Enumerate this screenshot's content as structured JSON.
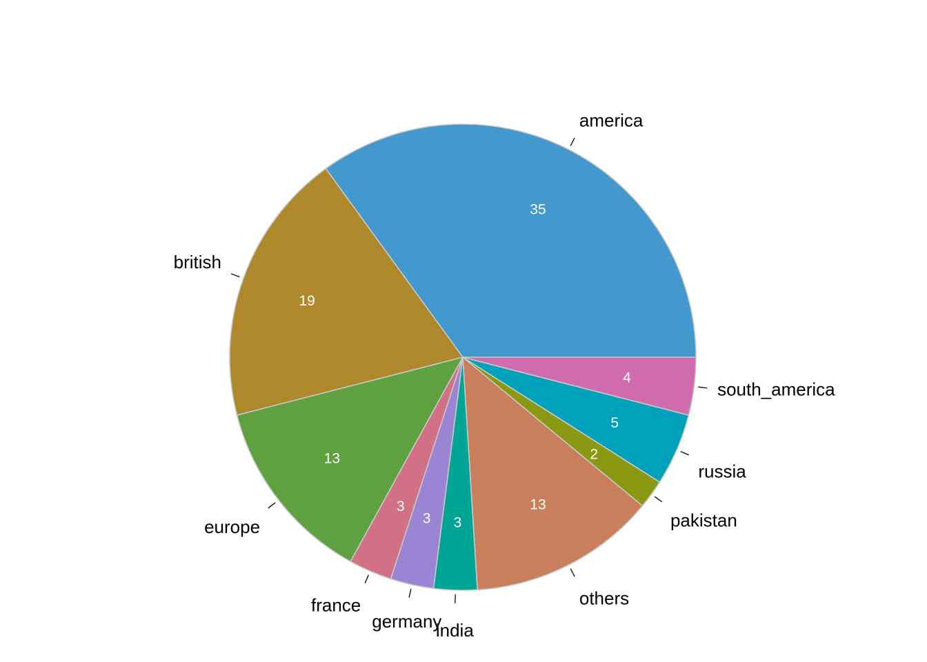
{
  "chart_data": {
    "type": "pie",
    "start": "3 o'clock",
    "direction": "counter-clockwise",
    "slices": [
      {
        "label": "america",
        "value": 35,
        "value_label": "35",
        "color": "#4398cd"
      },
      {
        "label": "british",
        "value": 19,
        "value_label": "19",
        "color": "#af882b"
      },
      {
        "label": "europe",
        "value": 13,
        "value_label": "13",
        "color": "#5fa040"
      },
      {
        "label": "france",
        "value": 3,
        "value_label": "3",
        "color": "#d27185"
      },
      {
        "label": "germany",
        "value": 3,
        "value_label": "3",
        "color": "#9985d4"
      },
      {
        "label": "india",
        "value": 3,
        "value_label": "3",
        "color": "#00a595"
      },
      {
        "label": "others",
        "value": 13,
        "value_label": "13",
        "color": "#c97e5c"
      },
      {
        "label": "pakistan",
        "value": 2,
        "value_label": "2",
        "color": "#8b9812"
      },
      {
        "label": "russia",
        "value": 5,
        "value_label": "5",
        "color": "#00a1ba"
      },
      {
        "label": "south_america",
        "value": 4,
        "value_label": "4",
        "color": "#d06cae"
      }
    ],
    "slice_border_color": "#c8c8c8",
    "legend": "none"
  }
}
